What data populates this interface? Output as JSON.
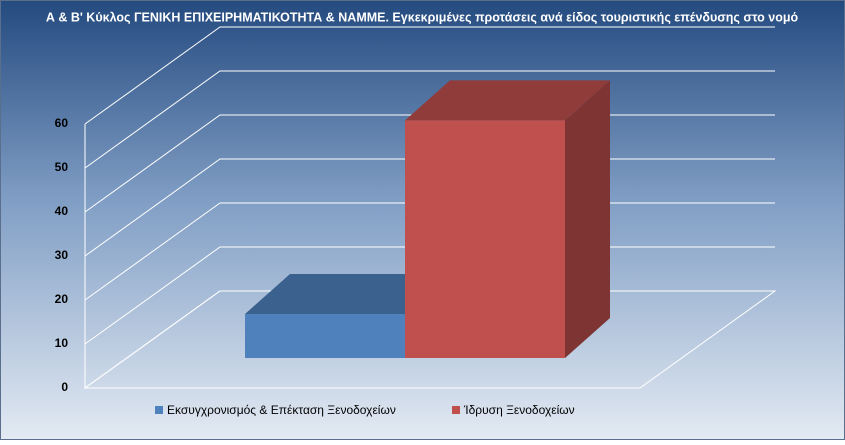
{
  "chart_data": {
    "type": "bar3d",
    "title": "Α & Β' Κύκλος ΓΕΝΙΚΗ ΕΠΙΧΕΙΡΗΜΑΤΙΚΟΤΗΤΑ & ΝΑΜΜΕ. Εγκεκριμένες προτάσεις ανά είδος τουριστικής επένδυσης στο νομό",
    "categories": [
      null
    ],
    "series": [
      {
        "name": "Εκσυγχρονισμός & Επέκταση Ξενοδοχείων",
        "color": "#4f81bd",
        "values": [
          10
        ]
      },
      {
        "name": "Ίδρυση Ξενοδοχείων",
        "color": "#c0504d",
        "values": [
          54
        ]
      }
    ],
    "ylim": [
      0,
      60
    ],
    "yticks": [
      0,
      10,
      20,
      30,
      40,
      50,
      60
    ],
    "grid": true,
    "legend": "bottom"
  }
}
